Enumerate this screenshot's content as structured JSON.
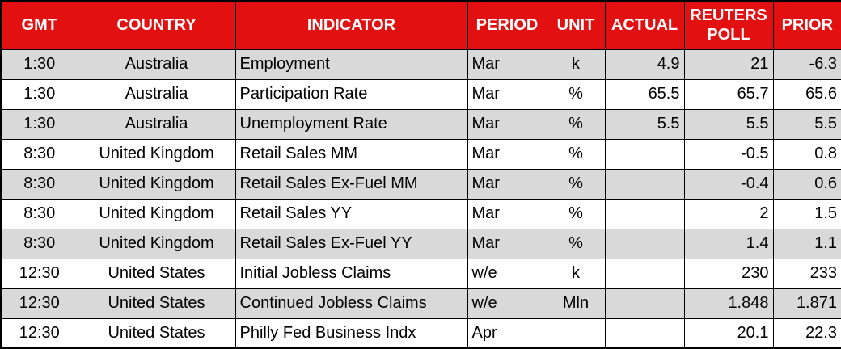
{
  "colors": {
    "header_bg": "#e21010",
    "header_text": "#ffffff",
    "row_shaded": "#d9d9d9",
    "row_plain": "#ffffff",
    "border": "#000000",
    "body_text": "#000000"
  },
  "table": {
    "columns": [
      {
        "key": "gmt",
        "label": "GMT"
      },
      {
        "key": "country",
        "label": "COUNTRY"
      },
      {
        "key": "indicator",
        "label": "INDICATOR"
      },
      {
        "key": "period",
        "label": "PERIOD"
      },
      {
        "key": "unit",
        "label": "UNIT"
      },
      {
        "key": "actual",
        "label": "ACTUAL"
      },
      {
        "key": "poll",
        "label": "REUTERS\nPOLL"
      },
      {
        "key": "prior",
        "label": "PRIOR"
      }
    ],
    "rows": [
      {
        "gmt": "1:30",
        "country": "Australia",
        "indicator": "Employment",
        "period": "Mar",
        "unit": "k",
        "actual": "4.9",
        "poll": "21",
        "prior": "-6.3"
      },
      {
        "gmt": "1:30",
        "country": "Australia",
        "indicator": "Participation Rate",
        "period": "Mar",
        "unit": "%",
        "actual": "65.5",
        "poll": "65.7",
        "prior": "65.6"
      },
      {
        "gmt": "1:30",
        "country": "Australia",
        "indicator": "Unemployment Rate",
        "period": "Mar",
        "unit": "%",
        "actual": "5.5",
        "poll": "5.5",
        "prior": "5.5"
      },
      {
        "gmt": "8:30",
        "country": "United Kingdom",
        "indicator": "Retail Sales MM",
        "period": "Mar",
        "unit": "%",
        "actual": "",
        "poll": "-0.5",
        "prior": "0.8"
      },
      {
        "gmt": "8:30",
        "country": "United Kingdom",
        "indicator": "Retail Sales Ex-Fuel MM",
        "period": "Mar",
        "unit": "%",
        "actual": "",
        "poll": "-0.4",
        "prior": "0.6"
      },
      {
        "gmt": "8:30",
        "country": "United Kingdom",
        "indicator": "Retail Sales YY",
        "period": "Mar",
        "unit": "%",
        "actual": "",
        "poll": "2",
        "prior": "1.5"
      },
      {
        "gmt": "8:30",
        "country": "United Kingdom",
        "indicator": "Retail Sales Ex-Fuel YY",
        "period": "Mar",
        "unit": "%",
        "actual": "",
        "poll": "1.4",
        "prior": "1.1"
      },
      {
        "gmt": "12:30",
        "country": "United States",
        "indicator": "Initial Jobless Claims",
        "period": "w/e",
        "unit": "k",
        "actual": "",
        "poll": "230",
        "prior": "233"
      },
      {
        "gmt": "12:30",
        "country": "United States",
        "indicator": "Continued Jobless Claims",
        "period": "w/e",
        "unit": "Mln",
        "actual": "",
        "poll": "1.848",
        "prior": "1.871"
      },
      {
        "gmt": "12:30",
        "country": "United States",
        "indicator": "Philly Fed Business Indx",
        "period": "Apr",
        "unit": "",
        "actual": "",
        "poll": "20.1",
        "prior": "22.3"
      }
    ]
  }
}
